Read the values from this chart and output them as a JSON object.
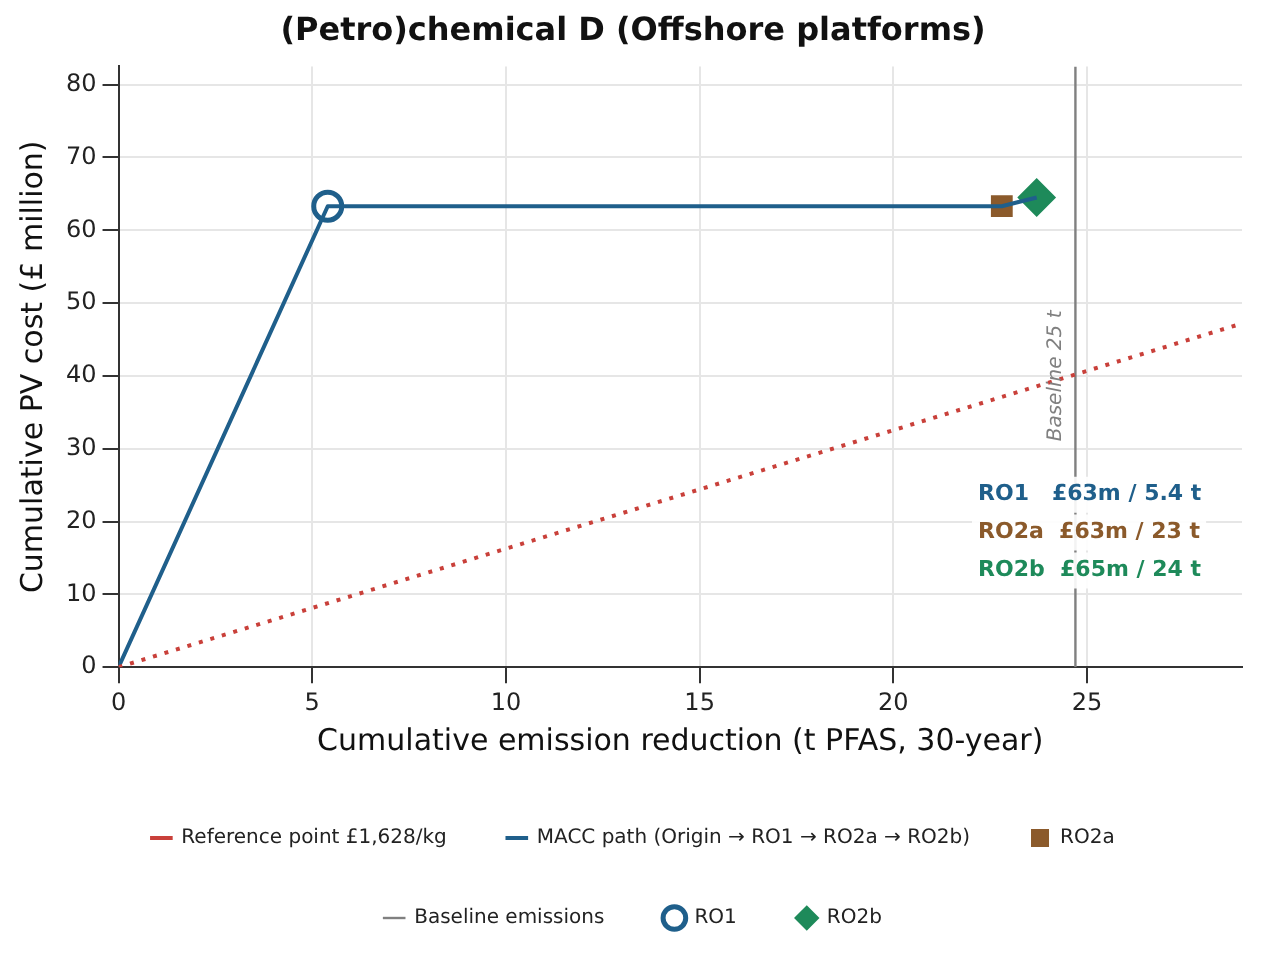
{
  "chart_data": {
    "type": "line",
    "title": "(Petro)chemical D (Offshore platforms)",
    "xlabel": "Cumulative emission reduction (t PFAS, 30-year)",
    "ylabel": "Cumulative PV cost (£ million)",
    "xlim": [
      0,
      29
    ],
    "xticks": [
      0,
      5,
      10,
      15,
      20,
      25
    ],
    "ylim": [
      0,
      82.5
    ],
    "yticks": [
      0,
      10,
      20,
      30,
      40,
      50,
      60,
      70,
      80
    ],
    "grid": true,
    "legend": "bottom",
    "series": [
      {
        "name": "Reference point £1,628/kg",
        "line_style": "dotted",
        "marker": "none",
        "color": "#c9403a",
        "x": [
          0,
          29
        ],
        "values": [
          0,
          47.2
        ]
      },
      {
        "name": "MACC path (Origin → RO1 → RO2a → RO2b)",
        "line_style": "solid",
        "marker": "none",
        "color": "#1f5f8b",
        "x": [
          0,
          5.4,
          22.8,
          23.7
        ],
        "values": [
          0,
          63.3,
          63.3,
          64.5
        ]
      },
      {
        "name": "RO2a",
        "type": "scatter",
        "marker": "square",
        "color": "#8b5a2b",
        "x": [
          22.8
        ],
        "values": [
          63.3
        ]
      },
      {
        "name": "Baseline emissions",
        "line_style": "solid",
        "marker": "none",
        "color": "#808080",
        "x": [
          24.7,
          24.7
        ],
        "values": [
          0,
          82.5
        ]
      },
      {
        "name": "RO1",
        "type": "scatter",
        "marker": "circle",
        "color": "#1f5f8b",
        "x": [
          5.4
        ],
        "values": [
          63.3
        ]
      },
      {
        "name": "RO2b",
        "type": "scatter",
        "marker": "diamond",
        "color": "#1e8a5a",
        "x": [
          23.7
        ],
        "values": [
          64.5
        ]
      }
    ],
    "annotations": [
      {
        "text": "Baseline 25 t",
        "x": 24.7,
        "y": 40
      },
      "RO1   £63m / 5.4 t",
      "RO2a  £63m / 23 t",
      "RO2b  £65m / 24 t"
    ]
  }
}
